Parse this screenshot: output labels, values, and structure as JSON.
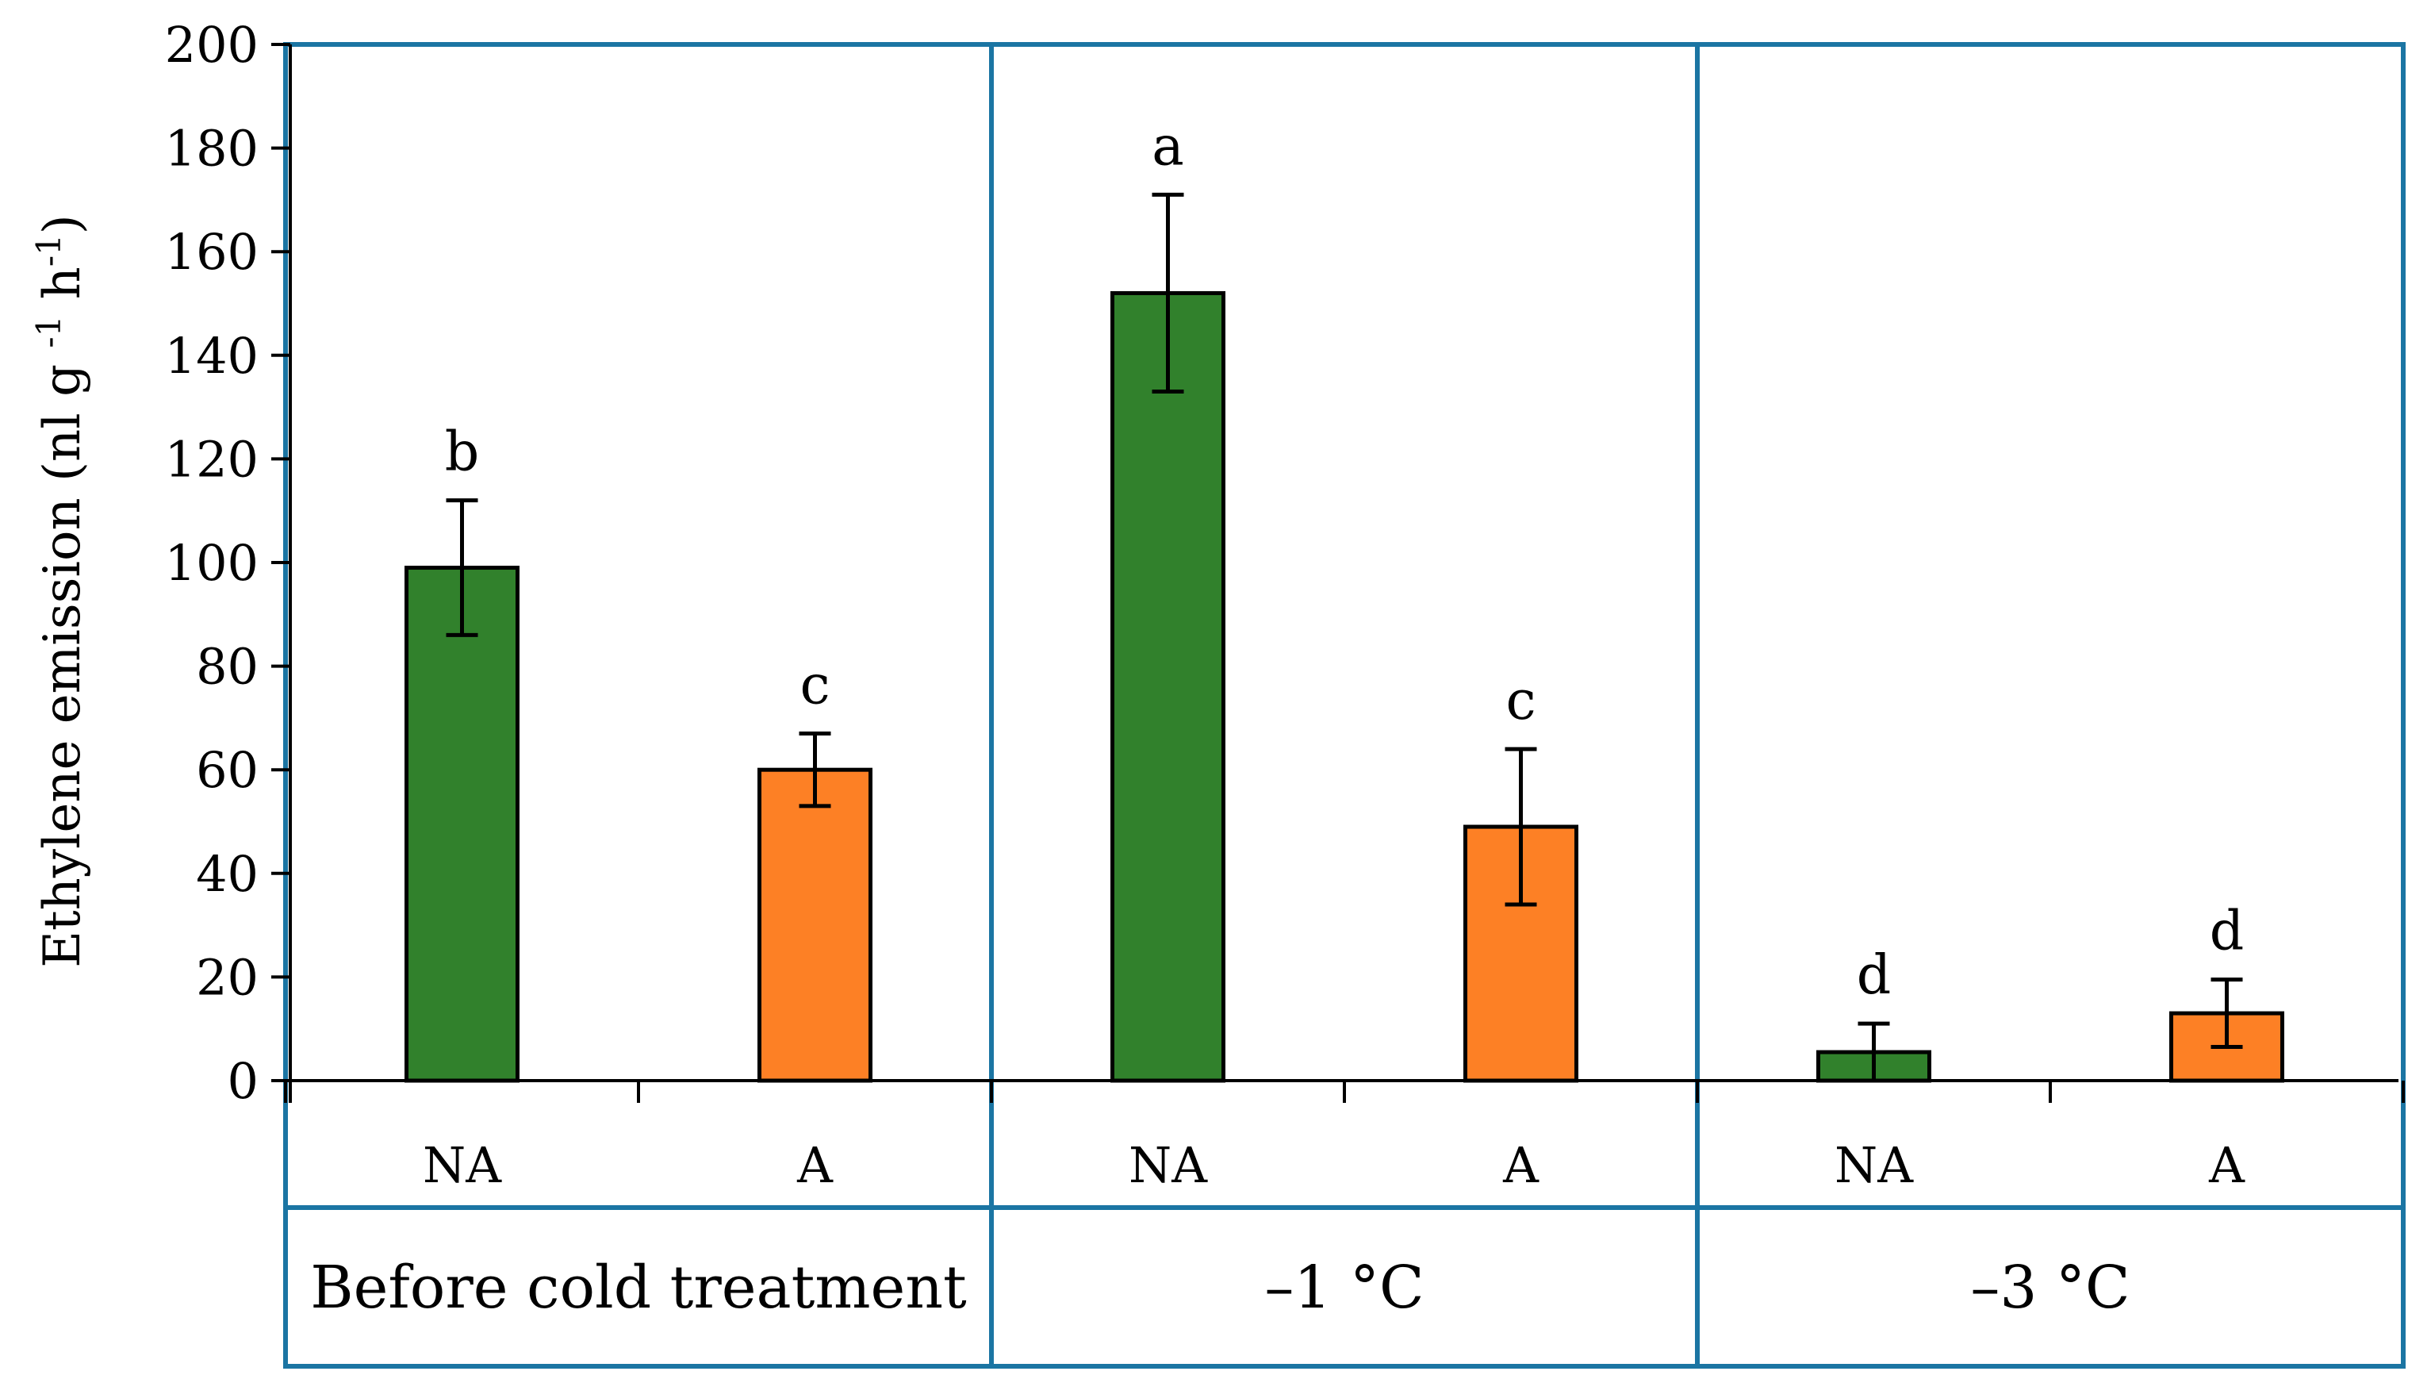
{
  "chart_data": {
    "type": "bar",
    "title": "",
    "ylabel": "Ethylene emission (nl g -1 h-1)",
    "ylabel_parts": {
      "prefix": "Ethylene emission (nl g ",
      "sup1": "-1",
      "mid": " h",
      "sup2": "-1",
      "suffix": ")"
    },
    "ylim": [
      0,
      200
    ],
    "yticks": [
      "0",
      "20",
      "40",
      "60",
      "80",
      "100",
      "120",
      "140",
      "160",
      "180",
      "200"
    ],
    "groups": [
      {
        "label": "Before cold treatment",
        "bars": [
          {
            "category": "NA",
            "value": 99,
            "error": 13,
            "sig": "b",
            "color": "#31812c"
          },
          {
            "category": "A",
            "value": 60,
            "error": 7,
            "sig": "c",
            "color": "#fd8025"
          }
        ]
      },
      {
        "label": "–1 °C",
        "bars": [
          {
            "category": "NA",
            "value": 152,
            "error": 19,
            "sig": "a",
            "color": "#31812c"
          },
          {
            "category": "A",
            "value": 49,
            "error": 15,
            "sig": "c",
            "color": "#fd8025"
          }
        ]
      },
      {
        "label": "–3 °C",
        "bars": [
          {
            "category": "NA",
            "value": 5.5,
            "error": 5.5,
            "sig": "d",
            "color": "#31812c"
          },
          {
            "category": "A",
            "value": 13,
            "error": 6.5,
            "sig": "d",
            "color": "#fd8025"
          }
        ]
      }
    ],
    "colors": {
      "NA": "#31812c",
      "A": "#fd8025",
      "frame": "#1b75a3"
    }
  }
}
